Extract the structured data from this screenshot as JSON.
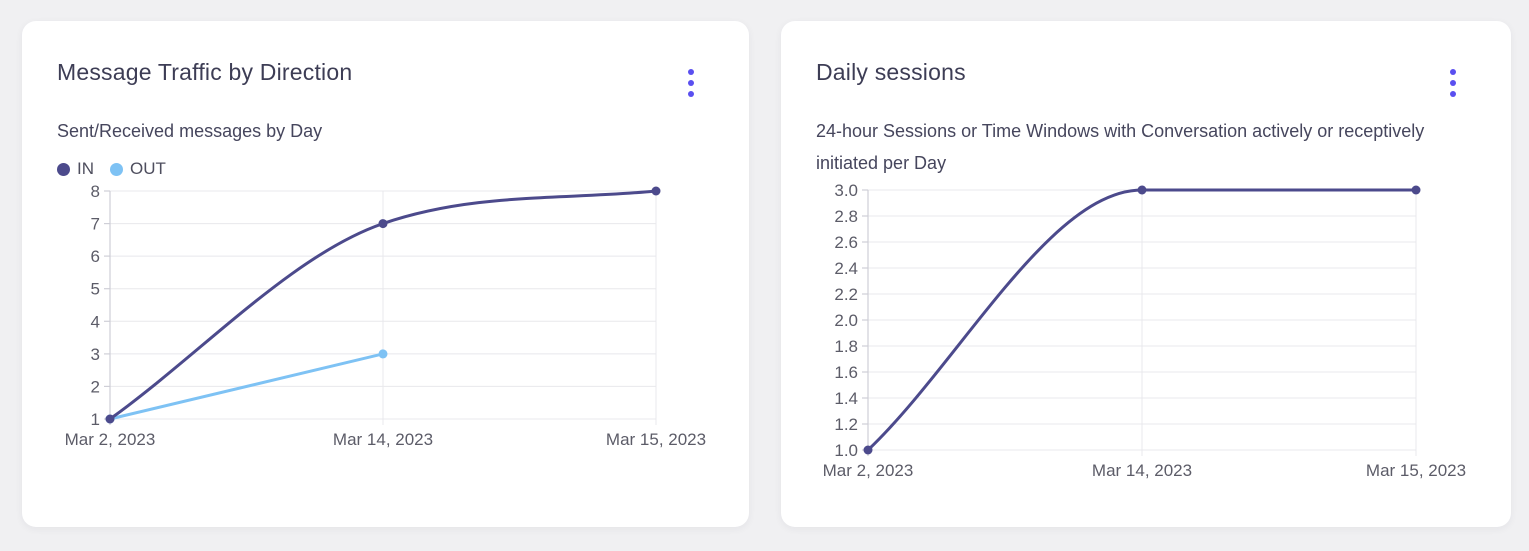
{
  "theme": {
    "page_bg": "#f0f0f2",
    "card_bg": "#ffffff",
    "accent": "#5a4ff0",
    "title_color": "#3d3d55",
    "subtitle_color": "#46465d",
    "tick_color": "#5c5c68",
    "grid_color": "#e8e8ec",
    "axis_color": "#cfcfd7",
    "series_in_color": "#4c4a8c",
    "series_out_color": "#7ec2f4"
  },
  "cards": [
    {
      "title": "Message Traffic by Direction",
      "subtitle": "Sent/Received messages by Day",
      "menu_icon": "kebab-menu-icon"
    },
    {
      "title": "Daily sessions",
      "subtitle": "24-hour Sessions or Time Windows with Conversation actively or receptively initiated per Day",
      "menu_icon": "kebab-menu-icon"
    }
  ],
  "chart_data": [
    {
      "type": "line",
      "title": "Message Traffic by Direction",
      "subtitle": "Sent/Received messages by Day",
      "categories": [
        "Mar 2, 2023",
        "Mar 14, 2023",
        "Mar 15, 2023"
      ],
      "series": [
        {
          "name": "IN",
          "color": "#4c4a8c",
          "values": [
            1,
            7,
            8
          ]
        },
        {
          "name": "OUT",
          "color": "#7ec2f4",
          "values": [
            1,
            3,
            null
          ]
        }
      ],
      "ylim": [
        1,
        8
      ],
      "yticks": [
        {
          "v": 8,
          "label": "8"
        },
        {
          "v": 7,
          "label": "7"
        },
        {
          "v": 6,
          "label": "6"
        },
        {
          "v": 5,
          "label": "5"
        },
        {
          "v": 4,
          "label": "4"
        },
        {
          "v": 3,
          "label": "3"
        },
        {
          "v": 2,
          "label": "2"
        },
        {
          "v": 1,
          "label": "1"
        }
      ],
      "grid": true,
      "curve": "monotone",
      "legend_position": "top-left"
    },
    {
      "type": "line",
      "title": "Daily sessions",
      "subtitle": "24-hour Sessions or Time Windows with Conversation actively or receptively initiated per Day",
      "categories": [
        "Mar 2, 2023",
        "Mar 14, 2023",
        "Mar 15, 2023"
      ],
      "series": [
        {
          "color": "#4c4a8c",
          "values": [
            1,
            3,
            3
          ]
        }
      ],
      "ylim": [
        1,
        3
      ],
      "yticks": [
        {
          "v": 3.0,
          "label": "3.0"
        },
        {
          "v": 2.8,
          "label": "2.8"
        },
        {
          "v": 2.6,
          "label": "2.6"
        },
        {
          "v": 2.4,
          "label": "2.4"
        },
        {
          "v": 2.2,
          "label": "2.2"
        },
        {
          "v": 2.0,
          "label": "2.0"
        },
        {
          "v": 1.8,
          "label": "1.8"
        },
        {
          "v": 1.6,
          "label": "1.6"
        },
        {
          "v": 1.4,
          "label": "1.4"
        },
        {
          "v": 1.2,
          "label": "1.2"
        },
        {
          "v": 1.0,
          "label": "1.0"
        }
      ],
      "grid": true,
      "curve": "monotone",
      "legend_position": "none"
    }
  ]
}
